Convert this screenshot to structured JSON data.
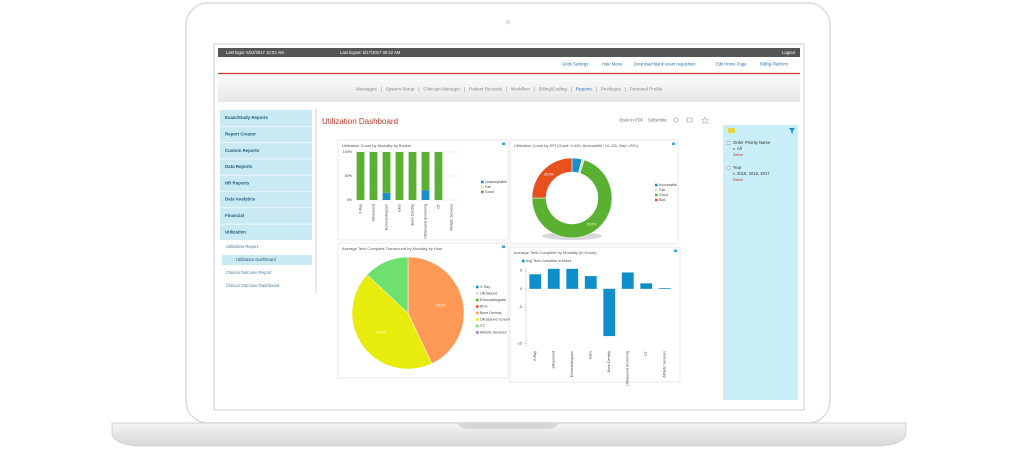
{
  "header": {
    "last_login": "Last login: 5/22/2017 10:02 AM",
    "last_logout": "Last logout: 5/17/2017 05:42 AM",
    "logout": "Logout"
  },
  "links": [
    "Grids Settings",
    "Hide Menu",
    "Download blank exam requisition",
    "Edit Home Page",
    "Billing Platform"
  ],
  "nav": {
    "items": [
      "Messages",
      "System Setup",
      "Clinician Manager",
      "Patient Records",
      "Workflow",
      "Billing/Coding",
      "Reports",
      "Privileges",
      "Personal Profile"
    ],
    "active": 6
  },
  "sidebar": {
    "items": [
      "Exam/Study Reports",
      "Report Creator",
      "Custom Reports",
      "Data Reports",
      "HR Reports",
      "Data Analytics",
      "Financial",
      "Utilization"
    ],
    "subitems": [
      "Utilization Report",
      "Utilization Dashboard",
      "Clinical Outcome Report",
      "Clinical Outcome Dashboard"
    ],
    "active_subitem": 1
  },
  "page_title": "Utilization Dashboard",
  "actions": [
    "Open in PDF",
    "Subscribe"
  ],
  "filters": [
    {
      "label": "Order Priority Name",
      "value": "All",
      "action": "Select"
    },
    {
      "label": "Year",
      "value": "2018, 2016, 2017",
      "action": "Select"
    }
  ],
  "chart_data": [
    {
      "type": "stacked_bar",
      "title": "Utilization Count by Modality by Bucket",
      "categories": [
        "X-Ray",
        "Ultrasound",
        "Echocardiogram",
        "EKG",
        "Bone Density",
        "Ultrasound Screening",
        "CT",
        "Athletic Services"
      ],
      "series": [
        {
          "name": "Unacceptable",
          "color": "#1a8fc7",
          "values": [
            0,
            0,
            15,
            0,
            0,
            20,
            0,
            0
          ]
        },
        {
          "name": "Fair",
          "color": "#cfe3c4",
          "values": [
            0,
            0,
            0,
            0,
            0,
            0,
            0,
            0
          ]
        },
        {
          "name": "Good",
          "color": "#5ab031",
          "values": [
            100,
            100,
            85,
            100,
            100,
            80,
            100,
            0
          ]
        }
      ],
      "ylim": [
        0,
        100
      ],
      "yticks": [
        {
          "value": 0,
          "label": "0%"
        },
        {
          "value": 50,
          "label": "50%"
        },
        {
          "value": 100,
          "label": "100%"
        }
      ],
      "grid": true
    },
    {
      "type": "donut",
      "title": "Utilization Count by KPI (Good: 0-10h, Acceptable: 10-22h, Bad >22h)",
      "categories": [
        "Acceptable",
        "Fair",
        "Good",
        "Bad"
      ],
      "colors": [
        "#1a8fc7",
        "#d8e4d0",
        "#5ab031",
        "#e8501e"
      ],
      "values": [
        4,
        1,
        70,
        25
      ],
      "value_labels": [
        null,
        null,
        "70.0%",
        "25.0%"
      ]
    },
    {
      "type": "pie",
      "title": "Average Tech Complete Turnaround by Modality by Hour",
      "categories": [
        "X-Ray",
        "Ultrasound",
        "Echocardiogram",
        "EKG",
        "Bone Density",
        "Ultrasound Screening",
        "CT",
        "Athletic Services"
      ],
      "colors": [
        "#1a8fc7",
        "#cfe3c4",
        "#5ab031",
        "#e8501e",
        "#ff9955",
        "#e8ec0c",
        "#6ee06e",
        "#b07ad0"
      ],
      "values": [
        0,
        0,
        0,
        0,
        43,
        44,
        13,
        0
      ],
      "value_labels": [
        null,
        null,
        null,
        null,
        "43.0%",
        "44.0%",
        null,
        null
      ]
    },
    {
      "type": "bar",
      "title": "Average Tech Complete by Modality (in Hours)",
      "categories": [
        "X-Ray",
        "Ultrasound",
        "Echocardiogram",
        "EKG",
        "Bone Density",
        "Ultrasound Screening",
        "CT",
        "Athletic Services"
      ],
      "series": [
        {
          "name": "Avg Tech Complete in Hours",
          "color": "#0e8fc9",
          "values": [
            4,
            5.5,
            5.5,
            3.5,
            -13,
            4.5,
            1.5,
            0.2
          ]
        }
      ],
      "ylim": [
        -16,
        6
      ],
      "yticks": [
        5,
        0,
        -5,
        -15
      ],
      "grid": false
    }
  ]
}
